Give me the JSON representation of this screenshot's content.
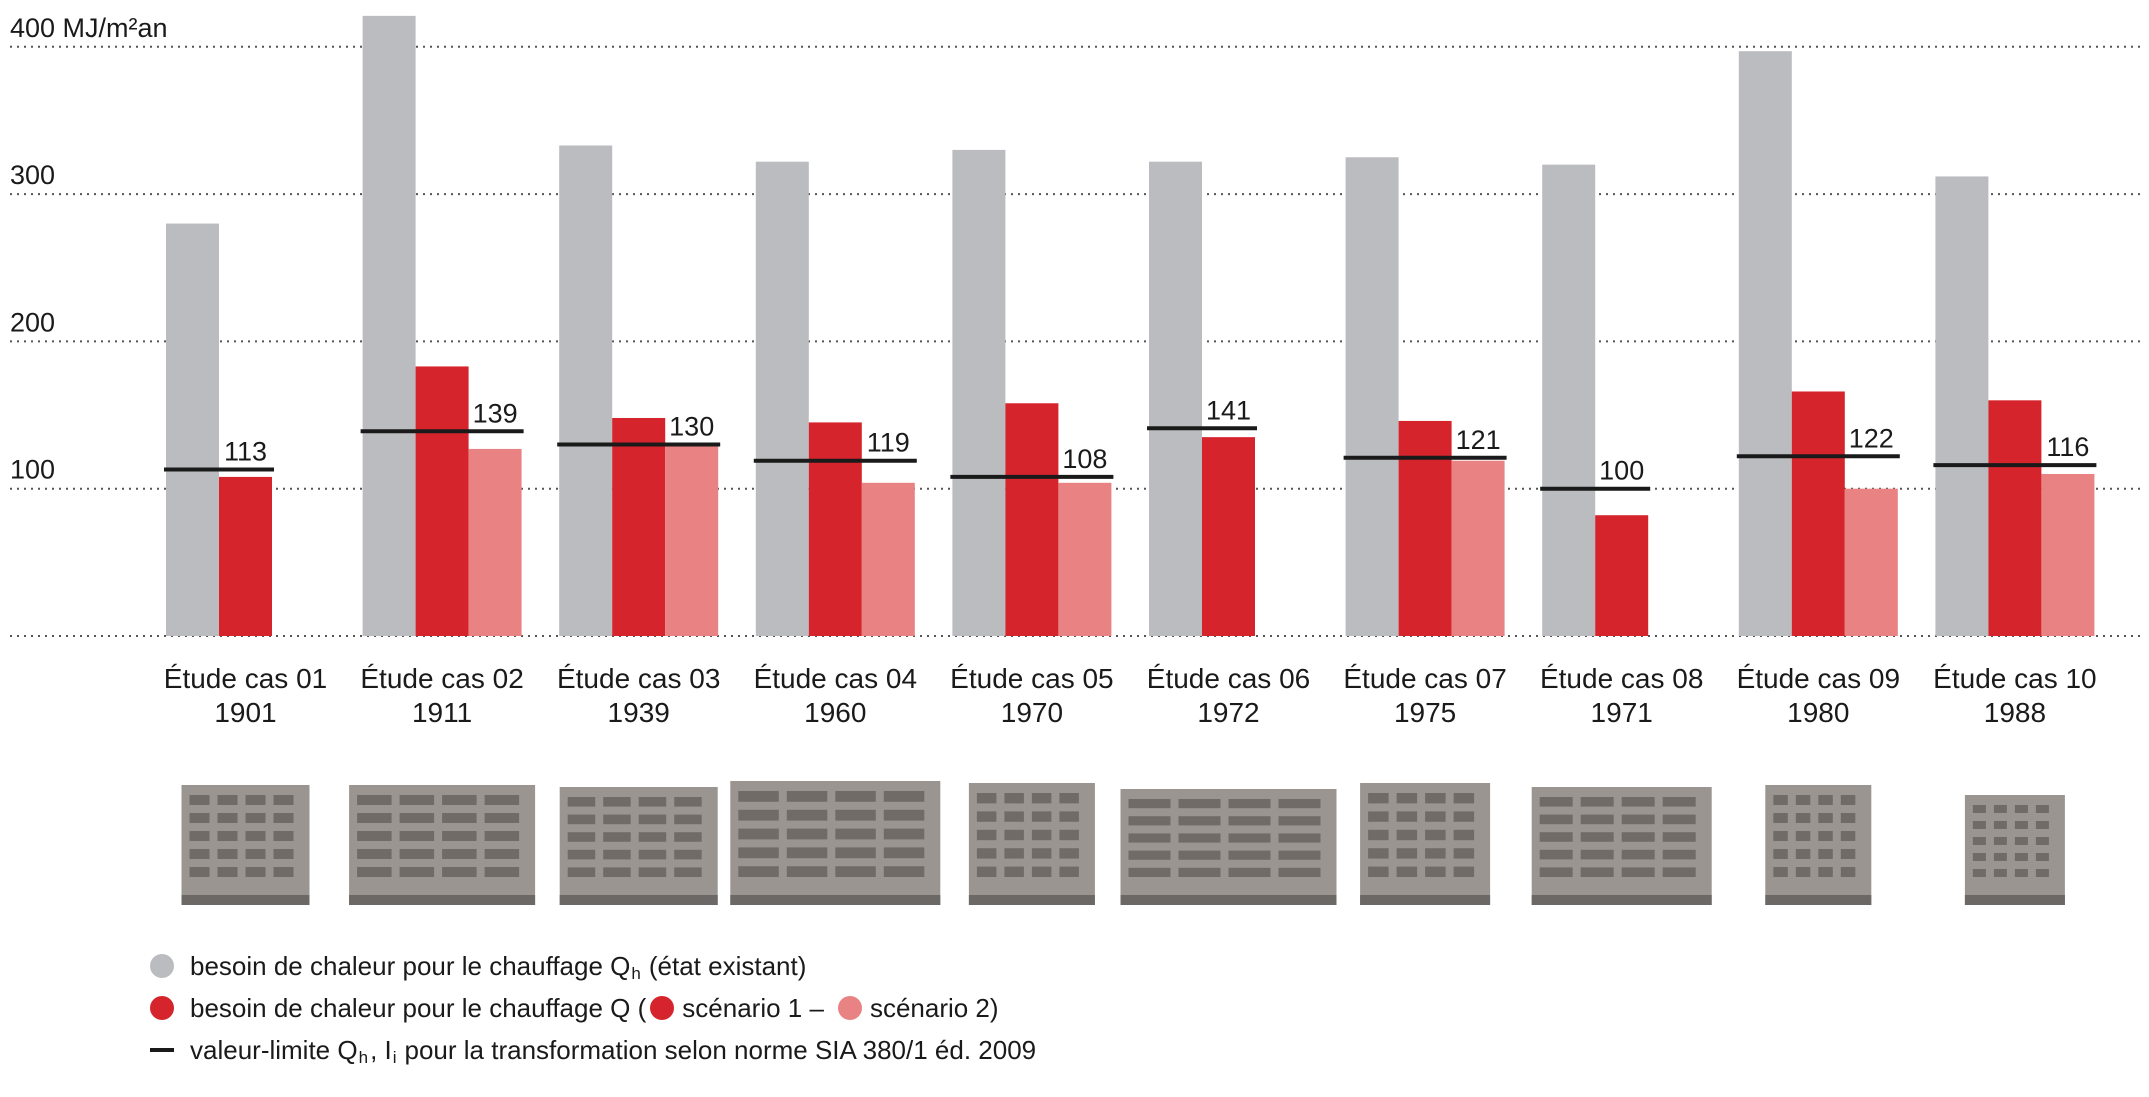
{
  "colors": {
    "existing": "#bbbcbf",
    "scenario1": "#d6242c",
    "scenario2": "#e98282",
    "limit": "#1a1a1a",
    "grid": "#555555",
    "photo_bg": "#9a9590"
  },
  "chart_data": {
    "type": "bar",
    "title": "",
    "xlabel": "",
    "ylabel": "MJ/m²an",
    "y_axis_top_label": "400 MJ/m²an",
    "y_ticks": [
      {
        "value": 100,
        "label": "100"
      },
      {
        "value": 200,
        "label": "200"
      },
      {
        "value": 300,
        "label": "300"
      },
      {
        "value": 400,
        "label": "400 MJ/m²an"
      }
    ],
    "ylim": [
      0,
      420
    ],
    "grid": true,
    "categories": [
      {
        "name": "Étude cas 01",
        "year": "1901"
      },
      {
        "name": "Étude cas 02",
        "year": "1911"
      },
      {
        "name": "Étude cas 03",
        "year": "1939"
      },
      {
        "name": "Étude cas 04",
        "year": "1960"
      },
      {
        "name": "Étude cas 05",
        "year": "1970"
      },
      {
        "name": "Étude cas 06",
        "year": "1972"
      },
      {
        "name": "Étude cas 07",
        "year": "1975"
      },
      {
        "name": "Étude cas 08",
        "year": "1971"
      },
      {
        "name": "Étude cas 09",
        "year": "1980"
      },
      {
        "name": "Étude cas 10",
        "year": "1988"
      }
    ],
    "series": [
      {
        "name": "besoin de chaleur pour le chauffage Qh (état existant)",
        "key": "existing",
        "values": [
          280,
          421,
          333,
          322,
          330,
          322,
          325,
          320,
          397,
          312
        ]
      },
      {
        "name": "scénario 1",
        "key": "scenario1",
        "values": [
          108,
          183,
          148,
          145,
          158,
          135,
          146,
          82,
          166,
          160
        ]
      },
      {
        "name": "scénario 2",
        "key": "scenario2",
        "values": [
          null,
          127,
          129,
          104,
          104,
          null,
          119,
          null,
          100,
          110
        ]
      }
    ],
    "limit_values": [
      113,
      139,
      130,
      119,
      108,
      141,
      121,
      100,
      122,
      116
    ],
    "limit_labels": [
      "113",
      "139",
      "130",
      "119",
      "108",
      "141",
      "121",
      "100",
      "122",
      "116"
    ]
  },
  "legend": {
    "existing_text": "besoin de chaleur pour le chauffage Q",
    "existing_sub": "h",
    "existing_suffix": "(état existant)",
    "q_text": "besoin de chaleur pour le chauffage Q (",
    "scenario1_text": "scénario 1 –",
    "scenario2_text": "scénario 2)",
    "limit_text_1": "valeur-limite Q",
    "limit_sub_1": "h",
    "limit_text_2": ", I",
    "limit_sub_2": "i",
    "limit_text_3": "pour la transformation selon norme SIA 380/1 éd. 2009"
  }
}
